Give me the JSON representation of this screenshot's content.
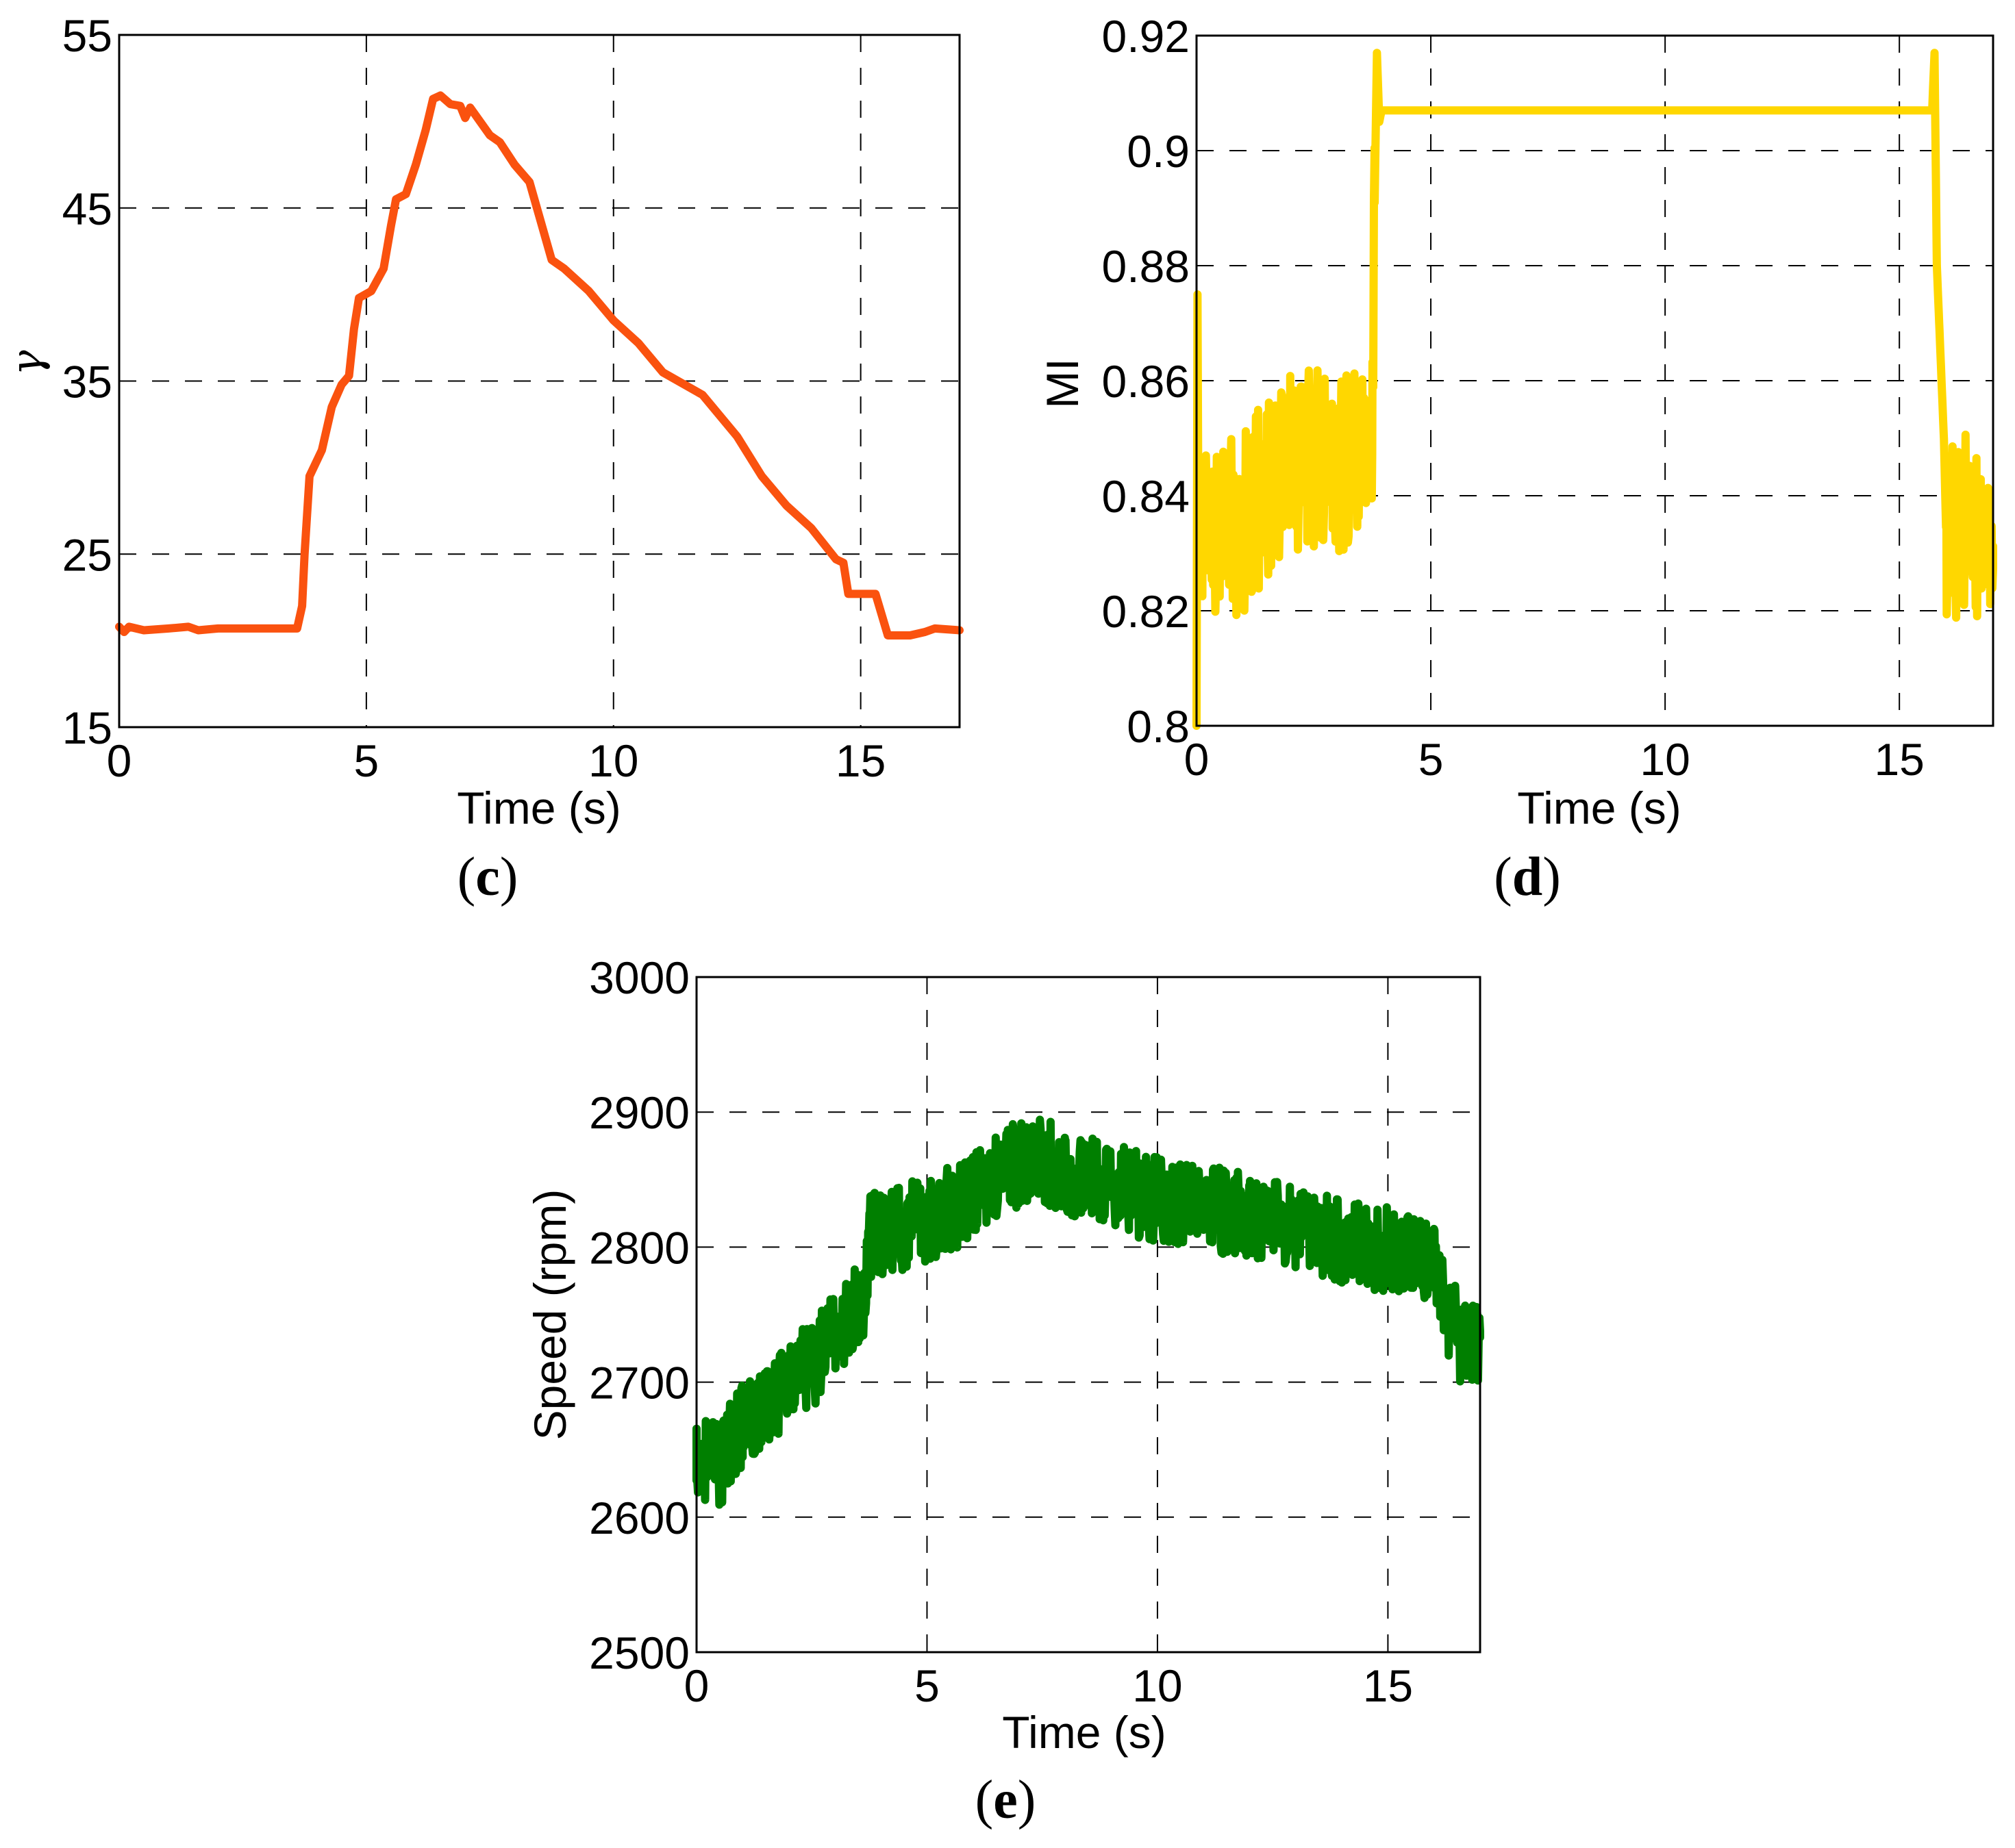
{
  "chart_data": [
    {
      "id": "c",
      "type": "line",
      "panel_label": "c",
      "title": "",
      "xlabel": "Time (s)",
      "ylabel": "γ",
      "xlim": [
        0,
        17
      ],
      "ylim": [
        15,
        55
      ],
      "xticks": [
        0,
        5,
        10,
        15
      ],
      "yticks": [
        15,
        25,
        35,
        45,
        55
      ],
      "grid": true,
      "color": "#FA520F",
      "line_width": 12,
      "noise_amplitude": 0,
      "series": [
        {
          "name": "gamma",
          "x": [
            0,
            0.1,
            0.2,
            0.5,
            1.0,
            1.4,
            1.6,
            2.0,
            2.5,
            3.0,
            3.4,
            3.6,
            3.7,
            3.75,
            3.85,
            4.1,
            4.3,
            4.5,
            4.65,
            4.75,
            4.85,
            5.1,
            5.35,
            5.5,
            5.6,
            5.8,
            6.0,
            6.2,
            6.35,
            6.5,
            6.7,
            6.9,
            7.0,
            7.1,
            7.5,
            7.7,
            8.0,
            8.3,
            8.5,
            8.75,
            9.0,
            9.5,
            10.0,
            10.5,
            11.0,
            11.8,
            12.5,
            13.0,
            13.5,
            14.0,
            14.5,
            14.65,
            14.75,
            15.3,
            15.55,
            16.0,
            16.3,
            16.5,
            17.0
          ],
          "y": [
            20.8,
            20.5,
            20.8,
            20.6,
            20.7,
            20.8,
            20.6,
            20.7,
            20.7,
            20.7,
            20.7,
            20.7,
            22.0,
            25.0,
            29.5,
            31.0,
            33.5,
            34.8,
            35.3,
            38.0,
            39.8,
            40.2,
            41.5,
            44.0,
            45.5,
            45.8,
            47.5,
            49.5,
            51.3,
            51.5,
            51.0,
            50.9,
            50.2,
            50.8,
            49.2,
            48.8,
            47.5,
            46.5,
            44.5,
            42.0,
            41.5,
            40.2,
            38.5,
            37.2,
            35.5,
            34.2,
            31.8,
            29.5,
            27.8,
            26.5,
            24.7,
            24.5,
            22.7,
            22.7,
            20.3,
            20.3,
            20.5,
            20.7,
            20.6
          ]
        }
      ]
    },
    {
      "id": "d",
      "type": "line",
      "panel_label": "d",
      "title": "",
      "xlabel": "Time (s)",
      "ylabel": "MI",
      "xlim": [
        0,
        17
      ],
      "ylim": [
        0.8,
        0.92
      ],
      "xticks": [
        0,
        5,
        10,
        15
      ],
      "yticks": [
        0.8,
        0.82,
        0.84,
        0.86,
        0.88,
        0.9,
        0.92
      ],
      "ytick_labels": [
        "0.8",
        "0.82",
        "0.84",
        "0.86",
        "0.88",
        "0.9",
        "0.92"
      ],
      "grid": true,
      "color": "#FFD700",
      "line_width": 12,
      "noise_amplitude": 0.016,
      "noise_ranges": [
        [
          0.05,
          3.8
        ],
        [
          16.0,
          17.0
        ]
      ],
      "series": [
        {
          "name": "MI",
          "x": [
            0,
            0.02,
            0.04,
            0.5,
            1.0,
            1.5,
            2.0,
            2.5,
            3.0,
            3.5,
            3.75,
            3.8,
            3.85,
            3.9,
            3.95,
            15.7,
            15.75,
            15.8,
            15.85,
            15.95,
            16.0,
            16.5,
            17.0
          ],
          "y": [
            0.8,
            0.875,
            0.835,
            0.833,
            0.835,
            0.842,
            0.845,
            0.847,
            0.846,
            0.848,
            0.85,
            0.89,
            0.917,
            0.905,
            0.907,
            0.907,
            0.917,
            0.88,
            0.87,
            0.85,
            0.833,
            0.835,
            0.825
          ]
        }
      ]
    },
    {
      "id": "e",
      "type": "line",
      "panel_label": "e",
      "title": "",
      "xlabel": "Time (s)",
      "ylabel": "Speed (rpm)",
      "xlim": [
        0,
        17
      ],
      "ylim": [
        2500,
        3000
      ],
      "xticks": [
        0,
        5,
        10,
        15
      ],
      "yticks": [
        2500,
        2600,
        2700,
        2800,
        2900,
        3000
      ],
      "grid": true,
      "color": "#007F00",
      "line_width": 12,
      "noise_amplitude": 32,
      "noise_ranges": [
        [
          0,
          17
        ]
      ],
      "series": [
        {
          "name": "speed",
          "x": [
            0,
            0.5,
            1.0,
            1.5,
            2.0,
            2.5,
            3.0,
            3.5,
            3.65,
            3.75,
            4.5,
            5.0,
            5.5,
            6.0,
            6.5,
            7.0,
            7.5,
            8.0,
            9.0,
            10.0,
            11.0,
            12.0,
            13.0,
            14.0,
            15.0,
            15.5,
            16.0,
            16.3,
            16.6,
            17.0
          ],
          "y": [
            2648,
            2638,
            2670,
            2685,
            2700,
            2712,
            2735,
            2755,
            2765,
            2808,
            2815,
            2820,
            2828,
            2840,
            2852,
            2862,
            2865,
            2855,
            2845,
            2835,
            2830,
            2822,
            2815,
            2805,
            2798,
            2795,
            2785,
            2750,
            2730,
            2725
          ]
        }
      ]
    }
  ],
  "panels": {
    "c": {
      "label_open": "(",
      "label_letter": "c",
      "label_close": ")",
      "xlabel": "Time (s)",
      "ylabel": "γ"
    },
    "d": {
      "label_open": "(",
      "label_letter": "d",
      "label_close": ")",
      "xlabel": "Time (s)",
      "ylabel": "MI"
    },
    "e": {
      "label_open": "(",
      "label_letter": "e",
      "label_close": ")",
      "xlabel": "Time (s)",
      "ylabel": "Speed (rpm)"
    }
  }
}
